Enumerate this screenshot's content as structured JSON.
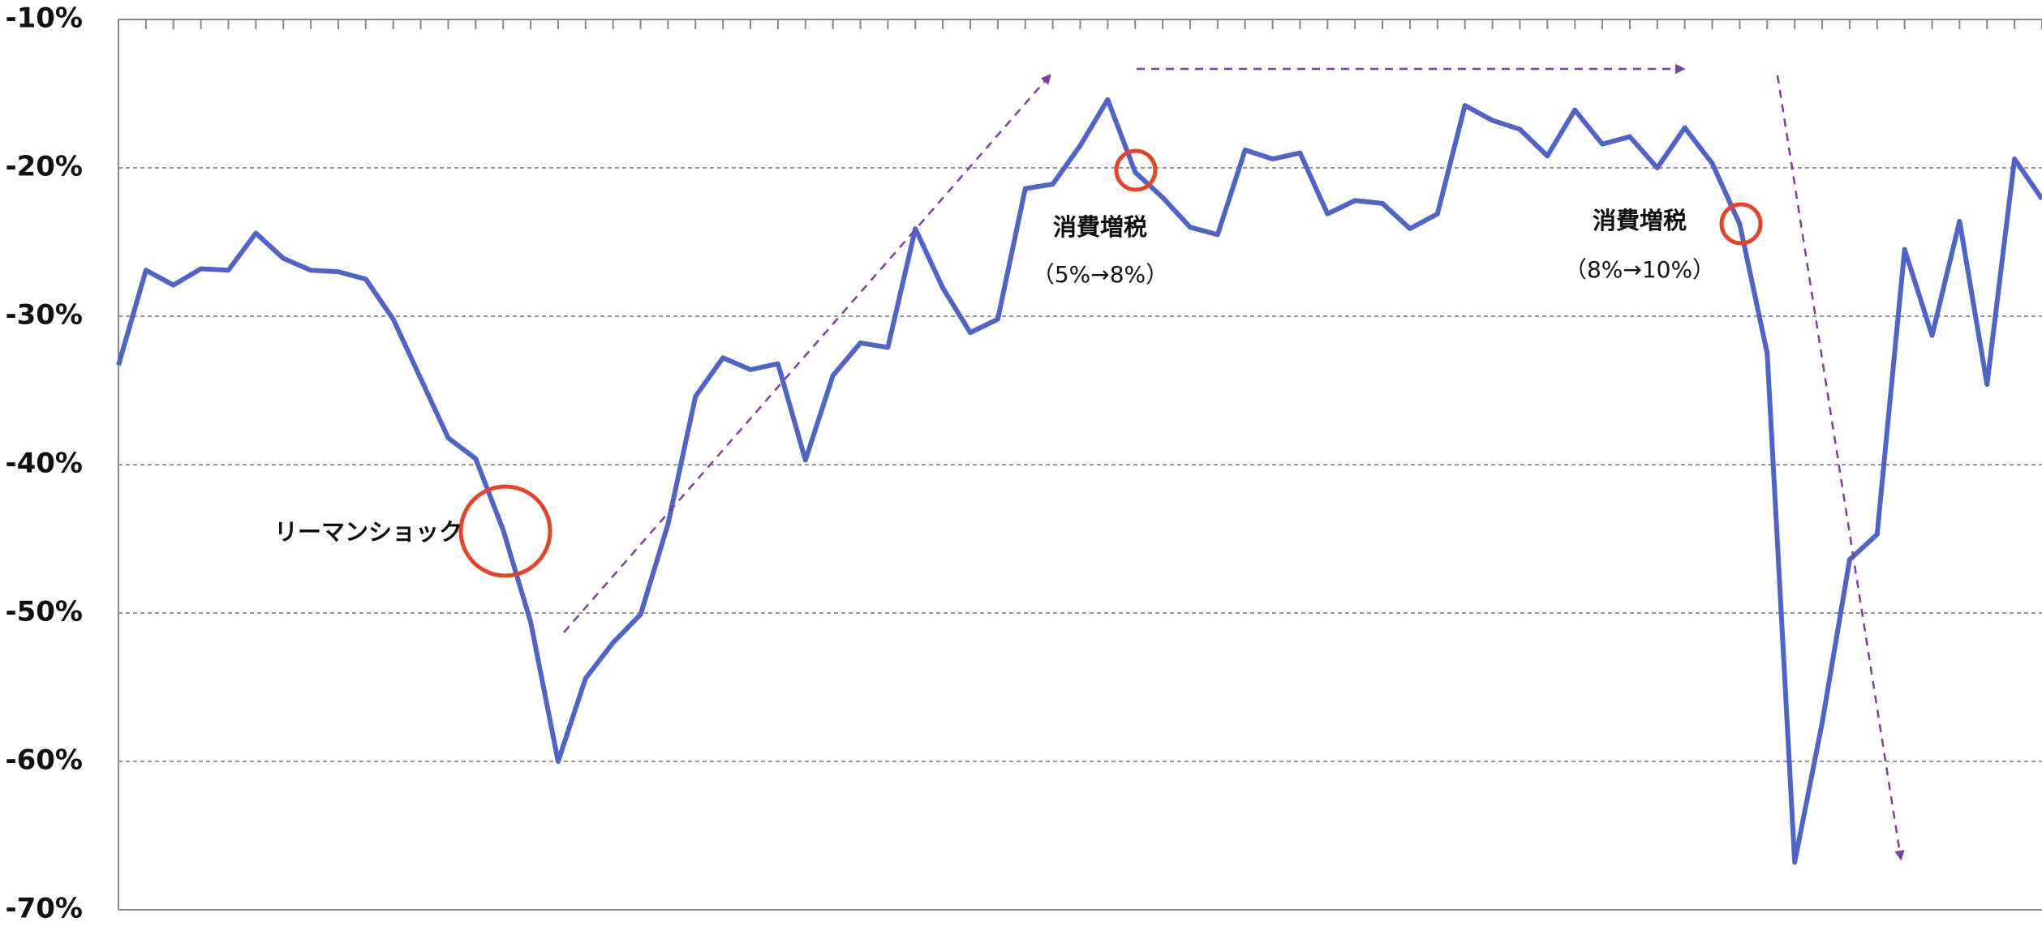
{
  "chart_data": {
    "type": "line",
    "categories": [
      null,
      null,
      null,
      null,
      null,
      null,
      null,
      null,
      null,
      null,
      null,
      null,
      null,
      null,
      null,
      null,
      null,
      null,
      null,
      null,
      null,
      null,
      null,
      null,
      null,
      null,
      null,
      null,
      null,
      null,
      null,
      null,
      null,
      null,
      null,
      null,
      null,
      null,
      null,
      null,
      null,
      null,
      null,
      null,
      null,
      null,
      null,
      null,
      null,
      null,
      null,
      null,
      null,
      null,
      null,
      null,
      null,
      null,
      null,
      null,
      null,
      null,
      null,
      null,
      null,
      null,
      null,
      null,
      null,
      null,
      null
    ],
    "series": [
      {
        "color": "#4f63c9",
        "values": [
          -33.3,
          -26.9,
          -27.9,
          -26.8,
          -26.9,
          -24.4,
          -26.1,
          -26.9,
          -27.0,
          -27.5,
          -30.2,
          -34.2,
          -38.2,
          -39.6,
          -44.4,
          -50.6,
          -60.0,
          -54.4,
          -52.0,
          -50.1,
          -44.0,
          -35.4,
          -32.8,
          -33.6,
          -33.2,
          -39.7,
          -34.0,
          -31.8,
          -32.1,
          -24.1,
          -28.1,
          -31.1,
          -30.2,
          -21.4,
          -21.1,
          -18.5,
          -15.4,
          -20.3,
          -22.0,
          -24.0,
          -24.5,
          -18.8,
          -19.4,
          -19.0,
          -23.1,
          -22.2,
          -22.4,
          -24.1,
          -23.1,
          -15.8,
          -16.8,
          -17.4,
          -19.2,
          -16.1,
          -18.4,
          -17.9,
          -20.0,
          -17.3,
          -19.7,
          -23.8,
          -32.5,
          -66.8,
          -57.4,
          -46.4,
          -44.7,
          -25.5,
          -31.3,
          -23.6,
          -34.6,
          -19.4,
          -22.1
        ]
      }
    ],
    "ylim": [
      -70,
      -10
    ],
    "yticks": [
      {
        "value": -10,
        "label": "-10%"
      },
      {
        "value": -20,
        "label": "-20%"
      },
      {
        "value": -30,
        "label": "-30%"
      },
      {
        "value": -40,
        "label": "-40%"
      },
      {
        "value": -50,
        "label": "-50%"
      },
      {
        "value": -60,
        "label": "-60%"
      },
      {
        "value": -70,
        "label": "-70%"
      }
    ],
    "grid": true,
    "annotations": [
      "リーマンショック",
      "消費増税",
      "（5%→8%）",
      "消費増税",
      "（8%→10%）"
    ]
  }
}
